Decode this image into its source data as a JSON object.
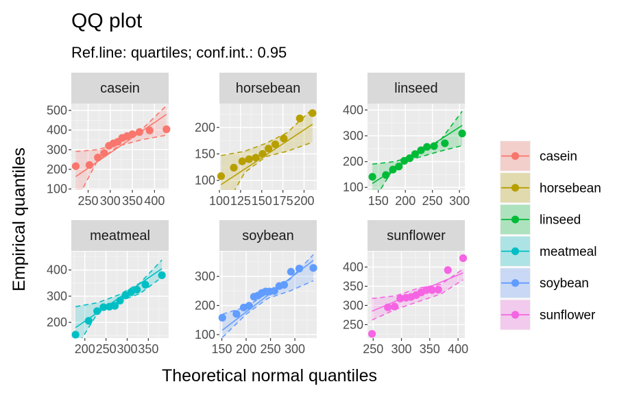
{
  "chart_data": {
    "type": "scatter",
    "title": "QQ plot",
    "subtitle": "Ref.line: quartiles; conf.int.: 0.95",
    "xlabel": "Theoretical normal quantiles",
    "ylabel": "Empirical quantiles",
    "legend_position": "right",
    "grid": true,
    "panels": [
      {
        "name": "casein",
        "color": "#F8766D",
        "xlim": [
          212,
          432
        ],
        "ylim": [
          95,
          535
        ],
        "xticks": [
          250,
          300,
          350,
          400
        ],
        "yticks": [
          100,
          200,
          300,
          400,
          500
        ],
        "points": [
          [
            222,
            216
          ],
          [
            253,
            222
          ],
          [
            272,
            260
          ],
          [
            286,
            283
          ],
          [
            297,
            320
          ],
          [
            307,
            332
          ],
          [
            317,
            340
          ],
          [
            327,
            360
          ],
          [
            338,
            369
          ],
          [
            350,
            379
          ],
          [
            366,
            390
          ],
          [
            389,
            398
          ],
          [
            427,
            404
          ]
        ],
        "ref_line": [
          [
            222,
            163
          ],
          [
            427,
            480
          ]
        ],
        "band_upper": [
          [
            222,
            291
          ],
          [
            270,
            300
          ],
          [
            320,
            330
          ],
          [
            370,
            400
          ],
          [
            427,
            525
          ]
        ],
        "band_lower": [
          [
            222,
            34
          ],
          [
            270,
            240
          ],
          [
            320,
            320
          ],
          [
            370,
            350
          ],
          [
            427,
            374
          ]
        ]
      },
      {
        "name": "horsebean",
        "color": "#B79F00",
        "xlim": [
          100,
          215
        ],
        "ylim": [
          82,
          245
        ],
        "xticks": [
          100,
          125,
          150,
          175,
          200
        ],
        "yticks": [
          100,
          150,
          200
        ],
        "points": [
          [
            102,
            108
          ],
          [
            117,
            124
          ],
          [
            127,
            136
          ],
          [
            135,
            140
          ],
          [
            143,
            143
          ],
          [
            151,
            150
          ],
          [
            158,
            160
          ],
          [
            166,
            168
          ],
          [
            176,
            179
          ],
          [
            195,
            217
          ],
          [
            210,
            227
          ]
        ],
        "ref_line": [
          [
            102,
            92
          ],
          [
            210,
            206
          ]
        ],
        "band_upper": [
          [
            102,
            147
          ],
          [
            130,
            155
          ],
          [
            155,
            170
          ],
          [
            180,
            190
          ],
          [
            210,
            235
          ]
        ],
        "band_lower": [
          [
            102,
            37
          ],
          [
            130,
            115
          ],
          [
            155,
            145
          ],
          [
            180,
            155
          ],
          [
            210,
            172
          ]
        ]
      },
      {
        "name": "linseed",
        "color": "#00BA38",
        "xlim": [
          130,
          310
        ],
        "ylim": [
          90,
          425
        ],
        "xticks": [
          150,
          200,
          250,
          300
        ],
        "yticks": [
          100,
          200,
          300,
          400
        ],
        "points": [
          [
            139,
            141
          ],
          [
            164,
            148
          ],
          [
            177,
            169
          ],
          [
            188,
            181
          ],
          [
            198,
            203
          ],
          [
            208,
            213
          ],
          [
            218,
            229
          ],
          [
            229,
            244
          ],
          [
            240,
            257
          ],
          [
            253,
            260
          ],
          [
            273,
            271
          ],
          [
            305,
            309
          ]
        ],
        "ref_line": [
          [
            139,
            115
          ],
          [
            305,
            340
          ]
        ],
        "band_upper": [
          [
            139,
            190
          ],
          [
            180,
            200
          ],
          [
            222,
            225
          ],
          [
            264,
            280
          ],
          [
            305,
            395
          ]
        ],
        "band_lower": [
          [
            139,
            40
          ],
          [
            180,
            180
          ],
          [
            222,
            215
          ],
          [
            264,
            240
          ],
          [
            305,
            262
          ]
        ]
      },
      {
        "name": "meatmeal",
        "color": "#00BFC4",
        "xlim": [
          168,
          398
        ],
        "ylim": [
          140,
          470
        ],
        "xticks": [
          200,
          250,
          300,
          350
        ],
        "yticks": [
          200,
          300,
          400
        ],
        "points": [
          [
            178,
            153
          ],
          [
            209,
            206
          ],
          [
            229,
            243
          ],
          [
            244,
            258
          ],
          [
            258,
            260
          ],
          [
            271,
            263
          ],
          [
            283,
            283
          ],
          [
            296,
            303
          ],
          [
            309,
            315
          ],
          [
            323,
            325
          ],
          [
            343,
            344
          ],
          [
            382,
            380
          ]
        ],
        "ref_line": [
          [
            178,
            180
          ],
          [
            382,
            405
          ]
        ],
        "band_upper": [
          [
            178,
            260
          ],
          [
            230,
            275
          ],
          [
            280,
            305
          ],
          [
            330,
            350
          ],
          [
            382,
            438
          ]
        ],
        "band_lower": [
          [
            178,
            100
          ],
          [
            230,
            235
          ],
          [
            280,
            280
          ],
          [
            330,
            310
          ],
          [
            382,
            372
          ]
        ]
      },
      {
        "name": "soybean",
        "color": "#619CFF",
        "xlim": [
          145,
          345
        ],
        "ylim": [
          88,
          385
        ],
        "xticks": [
          150,
          200,
          250,
          300
        ],
        "yticks": [
          100,
          200,
          300
        ],
        "points": [
          [
            151,
            158
          ],
          [
            180,
            171
          ],
          [
            195,
            193
          ],
          [
            206,
            199
          ],
          [
            216,
            230
          ],
          [
            224,
            234
          ],
          [
            232,
            243
          ],
          [
            240,
            248
          ],
          [
            248,
            248
          ],
          [
            258,
            250
          ],
          [
            268,
            267
          ],
          [
            278,
            271
          ],
          [
            292,
            316
          ],
          [
            309,
            327
          ],
          [
            338,
            329
          ]
        ],
        "ref_line": [
          [
            151,
            115
          ],
          [
            338,
            355
          ]
        ],
        "band_upper": [
          [
            151,
            170
          ],
          [
            200,
            195
          ],
          [
            245,
            245
          ],
          [
            290,
            290
          ],
          [
            338,
            375
          ]
        ],
        "band_lower": [
          [
            151,
            90
          ],
          [
            200,
            170
          ],
          [
            245,
            225
          ],
          [
            290,
            250
          ],
          [
            338,
            285
          ]
        ]
      },
      {
        "name": "sunflower",
        "color": "#F564E3",
        "xlim": [
          240,
          412
        ],
        "ylim": [
          215,
          440
        ],
        "xticks": [
          250,
          300,
          350,
          400
        ],
        "yticks": [
          250,
          300,
          350,
          400
        ],
        "points": [
          [
            248,
            226
          ],
          [
            276,
            295
          ],
          [
            288,
            297
          ],
          [
            298,
            318
          ],
          [
            308,
            320
          ],
          [
            317,
            322
          ],
          [
            326,
            327
          ],
          [
            335,
            334
          ],
          [
            344,
            340
          ],
          [
            354,
            340
          ],
          [
            365,
            341
          ],
          [
            382,
            392
          ],
          [
            409,
            423
          ]
        ],
        "ref_line": [
          [
            248,
            285
          ],
          [
            409,
            385
          ]
        ],
        "band_upper": [
          [
            248,
            318
          ],
          [
            290,
            325
          ],
          [
            330,
            345
          ],
          [
            370,
            355
          ],
          [
            409,
            395
          ]
        ],
        "band_lower": [
          [
            248,
            262
          ],
          [
            290,
            290
          ],
          [
            330,
            310
          ],
          [
            370,
            330
          ],
          [
            409,
            367
          ]
        ]
      }
    ],
    "legend": [
      "casein",
      "horsebean",
      "linseed",
      "meatmeal",
      "soybean",
      "sunflower"
    ]
  }
}
